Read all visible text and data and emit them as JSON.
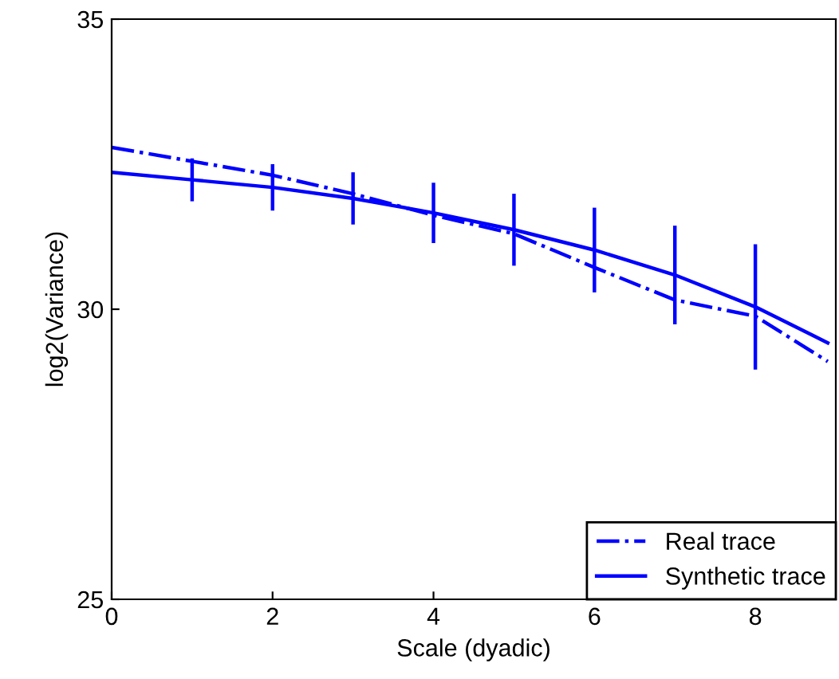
{
  "chart_data": {
    "type": "line",
    "xlabel": "Scale (dyadic)",
    "ylabel": "log2(Variance)",
    "xlim": [
      0,
      9
    ],
    "ylim": [
      25,
      35
    ],
    "xticks": [
      0,
      2,
      4,
      6,
      8
    ],
    "yticks": [
      25,
      30,
      35
    ],
    "grid": false,
    "legend": "bottom right",
    "marker": "none",
    "series": [
      {
        "name": "Real trace",
        "color": "#0000ff",
        "line_style": "dashdot",
        "x": [
          0,
          1,
          2,
          3,
          4,
          5,
          6,
          7,
          8,
          8.9
        ],
        "values": [
          32.79,
          32.55,
          32.31,
          31.99,
          31.62,
          31.3,
          30.72,
          30.16,
          29.88,
          29.1
        ]
      },
      {
        "name": "Synthetic trace",
        "color": "#0000ff",
        "line_style": "solid",
        "x": [
          0,
          1,
          2,
          3,
          4,
          5,
          6,
          7,
          8,
          8.9
        ],
        "values": [
          32.36,
          32.23,
          32.1,
          31.91,
          31.66,
          31.37,
          31.02,
          30.59,
          30.04,
          29.42
        ],
        "errors": [
          null,
          0.37,
          0.4,
          0.45,
          0.52,
          0.62,
          0.73,
          0.85,
          1.08,
          null
        ]
      }
    ]
  }
}
